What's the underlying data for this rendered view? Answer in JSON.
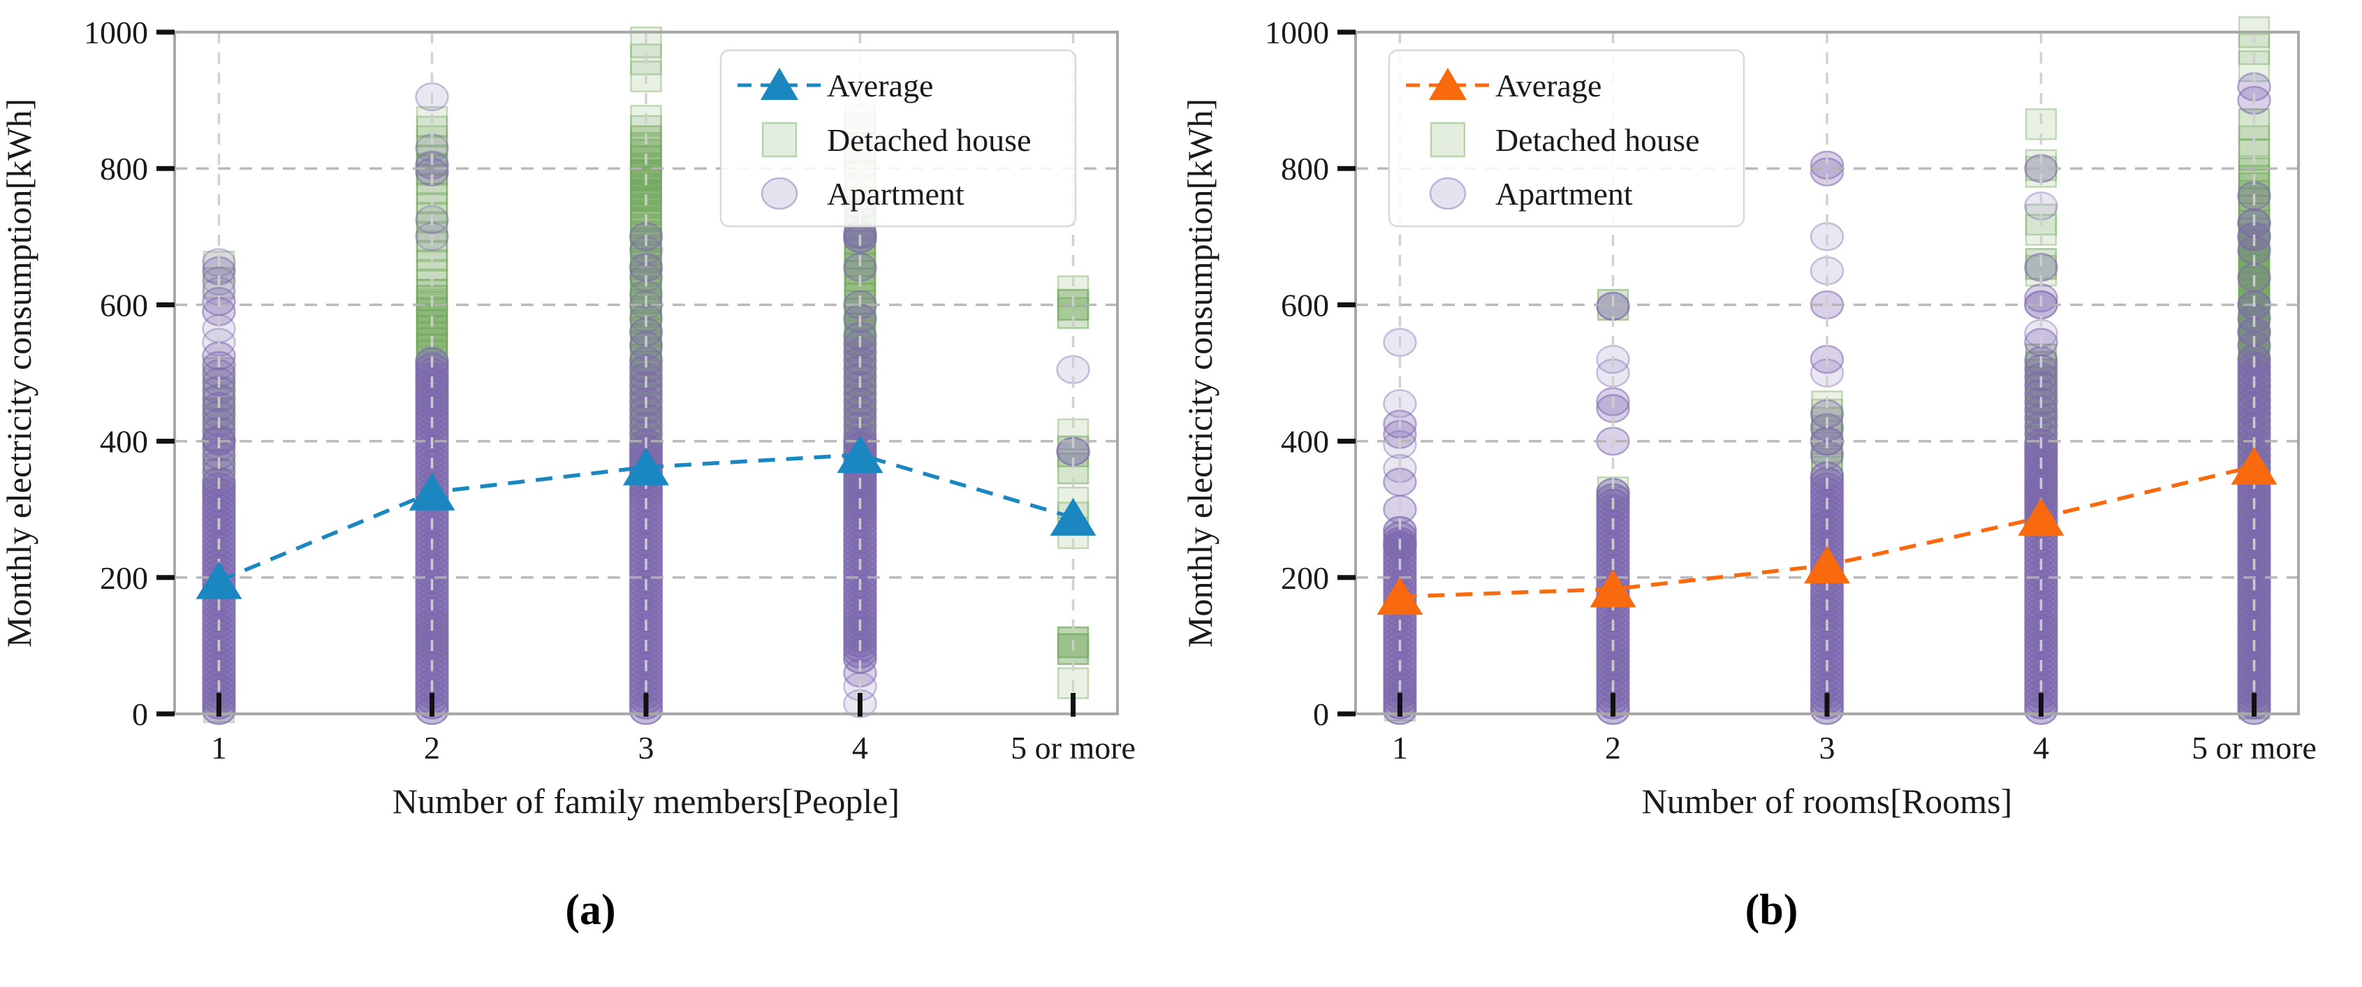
{
  "ui": {
    "captions": [
      "(a)",
      "(b)"
    ],
    "colors": {
      "spine": "#a8a8a8",
      "grid_h": "#b3b3b3",
      "grid_v": "#cfcfcf",
      "tick": "#111111",
      "text": "#1a1a1a",
      "legend_border": "#d9d9d9",
      "accent_a": "#1b87c1",
      "accent_b": "#f9690e",
      "detached_green": "#74a85e",
      "apartment_purple": "#7d68ae"
    }
  },
  "chart_data": [
    {
      "type": "scatter",
      "panel": "a",
      "xlabel": "Number of family members[People]",
      "ylabel": "Monthly electricity consumption[kWh]",
      "categories": [
        "1",
        "2",
        "3",
        "4",
        "5 or more"
      ],
      "ylim": [
        0,
        1000
      ],
      "yticks": [
        0,
        200,
        400,
        600,
        800,
        1000
      ],
      "grid": true,
      "legend_position": "upper right",
      "legend_labels": [
        "Average",
        "Detached house",
        "Apartment"
      ],
      "series": [
        {
          "name": "Average",
          "marker": "triangle",
          "line": "dashed",
          "color": "#1b87c1",
          "values": [
            195,
            325,
            362,
            380,
            288
          ]
        },
        {
          "name": "Detached house",
          "marker": "square",
          "color": "#74a85e",
          "by_category": [
            {
              "bands": [
                [
                  320,
                  500,
                  15,
                  1
                ]
              ],
              "points": [
                [
                  10,
                  1
                ],
                [
                  30,
                  1
                ],
                [
                  440,
                  2
                ],
                [
                  632,
                  1
                ],
                [
                  656,
                  1
                ]
              ]
            },
            {
              "bands": [
                [
                  430,
                  520,
                  12,
                  1
                ],
                [
                  525,
                  620,
                  9,
                  2
                ],
                [
                  630,
                  875,
                  14,
                  1
                ]
              ],
              "points": [
                [
                  95,
                  2
                ],
                [
                  110,
                  2
                ],
                [
                  125,
                  2
                ],
                [
                  800,
                  1
                ]
              ]
            },
            {
              "bands": [
                [
                  330,
                  650,
                  10,
                  2
                ],
                [
                  660,
                  840,
                  10,
                  2
                ]
              ],
              "points": [
                [
                  760,
                  3
                ],
                [
                  790,
                  3
                ],
                [
                  855,
                  1
                ],
                [
                  870,
                  1
                ],
                [
                  935,
                  1
                ],
                [
                  960,
                  1
                ],
                [
                  985,
                  1
                ]
              ]
            },
            {
              "bands": [
                [
                  300,
                  560,
                  10,
                  2
                ],
                [
                  565,
                  720,
                  11,
                  2
                ]
              ],
              "points": [
                [
                  120,
                  2
                ],
                [
                  730,
                  1
                ],
                [
                  750,
                  1
                ],
                [
                  770,
                  1
                ],
                [
                  790,
                  1
                ],
                [
                  810,
                  1
                ],
                [
                  830,
                  1
                ],
                [
                  858,
                  1
                ],
                [
                  872,
                  1
                ]
              ]
            },
            {
              "bands": [],
              "points": [
                [
                  45,
                  1
                ],
                [
                  95,
                  3
                ],
                [
                  105,
                  3
                ],
                [
                  265,
                  1
                ],
                [
                  288,
                  1
                ],
                [
                  310,
                  1
                ],
                [
                  360,
                  2
                ],
                [
                  385,
                  2
                ],
                [
                  410,
                  1
                ],
                [
                  588,
                  2
                ],
                [
                  600,
                  3
                ],
                [
                  620,
                  1
                ]
              ]
            }
          ]
        },
        {
          "name": "Apartment",
          "marker": "circle",
          "color": "#7d68ae",
          "by_category": [
            {
              "bands": [
                [
                  5,
                  345,
                  8,
                  3
                ],
                [
                  355,
                  515,
                  12,
                  2
                ]
              ],
              "points": [
                [
                  400,
                  3
                ],
                [
                  525,
                  2
                ],
                [
                  545,
                  1
                ],
                [
                  565,
                  1
                ],
                [
                  590,
                  2
                ],
                [
                  605,
                  2
                ],
                [
                  620,
                  1
                ],
                [
                  635,
                  1
                ],
                [
                  650,
                  2
                ],
                [
                  662,
                  1
                ]
              ]
            },
            {
              "bands": [
                [
                  5,
                  520,
                  8,
                  3
                ]
              ],
              "points": [
                [
                  700,
                  1
                ],
                [
                  725,
                  1
                ],
                [
                  795,
                  2
                ],
                [
                  805,
                  2
                ],
                [
                  830,
                  1
                ],
                [
                  905,
                  1
                ]
              ]
            },
            {
              "bands": [
                [
                  5,
                  400,
                  8,
                  3
                ],
                [
                  410,
                  520,
                  12,
                  2
                ]
              ],
              "points": [
                [
                  540,
                  2
                ],
                [
                  560,
                  2
                ],
                [
                  580,
                  1
                ],
                [
                  600,
                  1
                ],
                [
                  615,
                  1
                ],
                [
                  640,
                  1
                ],
                [
                  655,
                  2
                ],
                [
                  680,
                  1
                ],
                [
                  700,
                  2
                ]
              ]
            },
            {
              "bands": [
                [
                  80,
                  400,
                  8,
                  3
                ],
                [
                  410,
                  560,
                  12,
                  2
                ]
              ],
              "points": [
                [
                  15,
                  1
                ],
                [
                  40,
                  1
                ],
                [
                  60,
                  2
                ],
                [
                  580,
                  2
                ],
                [
                  600,
                  2
                ],
                [
                  655,
                  2
                ],
                [
                  697,
                  3
                ],
                [
                  703,
                  3
                ],
                [
                  745,
                  1
                ]
              ]
            },
            {
              "bands": [],
              "points": [
                [
                  385,
                  3
                ],
                [
                  505,
                  1
                ]
              ]
            }
          ]
        }
      ]
    },
    {
      "type": "scatter",
      "panel": "b",
      "xlabel": "Number of rooms[Rooms]",
      "ylabel": "Monthly electricity consumption[kWh]",
      "categories": [
        "1",
        "2",
        "3",
        "4",
        "5 or more"
      ],
      "ylim": [
        0,
        1000
      ],
      "yticks": [
        0,
        200,
        400,
        600,
        800,
        1000
      ],
      "grid": true,
      "legend_position": "upper left",
      "legend_labels": [
        "Average",
        "Detached house",
        "Apartment"
      ],
      "series": [
        {
          "name": "Average",
          "marker": "triangle",
          "line": "dashed",
          "color": "#f9690e",
          "values": [
            172,
            183,
            218,
            288,
            363
          ]
        },
        {
          "name": "Detached house",
          "marker": "square",
          "color": "#74a85e",
          "by_category": [
            {
              "bands": [],
              "points": [
                [
                  12,
                  1
                ],
                [
                  28,
                  1
                ],
                [
                  42,
                  2
                ]
              ]
            },
            {
              "bands": [],
              "points": [
                [
                  70,
                  2
                ],
                [
                  310,
                  1
                ],
                [
                  325,
                  1
                ],
                [
                  600,
                  2
                ]
              ]
            },
            {
              "bands": [
                [
                  355,
                  455,
                  12,
                  1
                ]
              ],
              "points": [
                [
                  150,
                  2
                ],
                [
                  270,
                  2
                ]
              ]
            },
            {
              "bands": [
                [
                  300,
                  520,
                  11,
                  2
                ]
              ],
              "points": [
                [
                  120,
                  2
                ],
                [
                  315,
                  3
                ],
                [
                  650,
                  1
                ],
                [
                  660,
                  2
                ],
                [
                  710,
                  1
                ],
                [
                  725,
                  1
                ],
                [
                  795,
                  1
                ],
                [
                  805,
                  1
                ],
                [
                  865,
                  1
                ]
              ]
            },
            {
              "bands": [
                [
                  15,
                  295,
                  12,
                  2
                ],
                [
                  300,
                  520,
                  10,
                  2
                ],
                [
                  525,
                  700,
                  9,
                  3
                ],
                [
                  705,
                  800,
                  11,
                  2
                ]
              ],
              "points": [
                [
                  820,
                  2
                ],
                [
                  840,
                  1
                ],
                [
                  865,
                  2
                ],
                [
                  950,
                  1
                ],
                [
                  975,
                  1
                ],
                [
                  1000,
                  1
                ]
              ]
            }
          ]
        },
        {
          "name": "Apartment",
          "marker": "circle",
          "color": "#7d68ae",
          "by_category": [
            {
              "bands": [
                [
                  5,
                  270,
                  8,
                  3
                ]
              ],
              "points": [
                [
                  248,
                  3
                ],
                [
                  300,
                  2
                ],
                [
                  340,
                  2
                ],
                [
                  360,
                  1
                ],
                [
                  395,
                  1
                ],
                [
                  410,
                  2
                ],
                [
                  425,
                  2
                ],
                [
                  455,
                  1
                ],
                [
                  545,
                  1
                ]
              ]
            },
            {
              "bands": [
                [
                  5,
                  330,
                  8,
                  3
                ]
              ],
              "points": [
                [
                  400,
                  2
                ],
                [
                  448,
                  2
                ],
                [
                  458,
                  2
                ],
                [
                  500,
                  1
                ],
                [
                  520,
                  1
                ],
                [
                  598,
                  3
                ]
              ]
            },
            {
              "bands": [
                [
                  5,
                  350,
                  8,
                  3
                ]
              ],
              "points": [
                [
                  380,
                  2
                ],
                [
                  400,
                  3
                ],
                [
                  420,
                  2
                ],
                [
                  440,
                  2
                ],
                [
                  500,
                  1
                ],
                [
                  520,
                  2
                ],
                [
                  600,
                  2
                ],
                [
                  650,
                  1
                ],
                [
                  700,
                  1
                ],
                [
                  795,
                  2
                ],
                [
                  805,
                  2
                ]
              ]
            },
            {
              "bands": [
                [
                  5,
                  400,
                  8,
                  3
                ],
                [
                  410,
                  520,
                  12,
                  2
                ]
              ],
              "points": [
                [
                  545,
                  2
                ],
                [
                  558,
                  1
                ],
                [
                  600,
                  3
                ],
                [
                  610,
                  2
                ],
                [
                  655,
                  2
                ],
                [
                  745,
                  1
                ],
                [
                  800,
                  2
                ]
              ]
            },
            {
              "bands": [
                [
                  5,
                  350,
                  8,
                  3
                ],
                [
                  360,
                  520,
                  10,
                  3
                ]
              ],
              "points": [
                [
                  540,
                  2
                ],
                [
                  560,
                  3
                ],
                [
                  580,
                  2
                ],
                [
                  600,
                  3
                ],
                [
                  640,
                  2
                ],
                [
                  680,
                  2
                ],
                [
                  700,
                  3
                ],
                [
                  720,
                  3
                ],
                [
                  760,
                  2
                ],
                [
                  900,
                  2
                ],
                [
                  920,
                  2
                ]
              ]
            }
          ]
        }
      ]
    }
  ]
}
